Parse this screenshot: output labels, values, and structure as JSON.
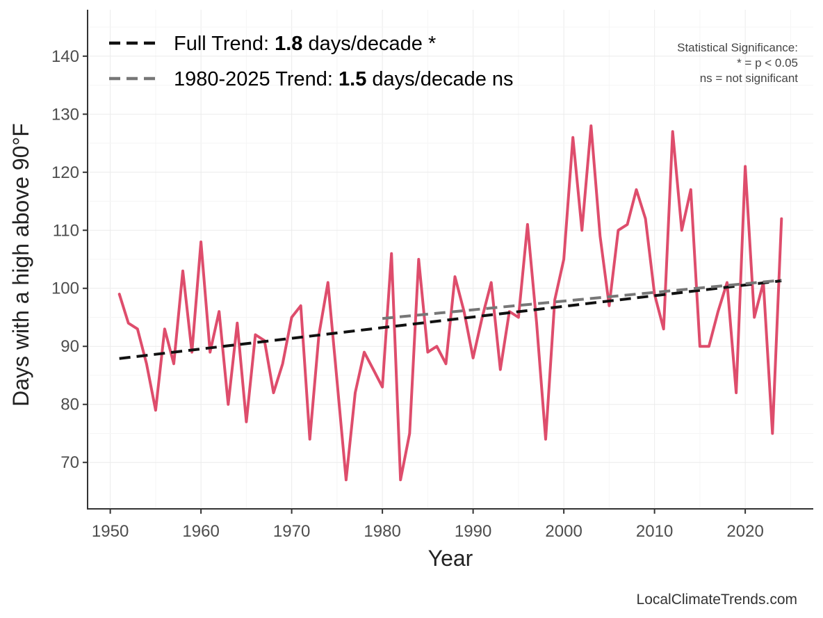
{
  "chart_data": {
    "type": "line",
    "xlabel": "Year",
    "ylabel": "Days with a high above 90°F",
    "xlim": [
      1947.5,
      2027.5
    ],
    "ylim": [
      62,
      148
    ],
    "x_ticks": [
      1950,
      1960,
      1970,
      1980,
      1990,
      2000,
      2010,
      2020
    ],
    "y_ticks": [
      70,
      80,
      90,
      100,
      110,
      120,
      130,
      140
    ],
    "grid": true,
    "legend_position": "top-left",
    "series": [
      {
        "color": "#de4d6c",
        "x": [
          1951,
          1952,
          1953,
          1954,
          1955,
          1956,
          1957,
          1958,
          1959,
          1960,
          1961,
          1962,
          1963,
          1964,
          1965,
          1966,
          1967,
          1968,
          1969,
          1970,
          1971,
          1972,
          1973,
          1974,
          1975,
          1976,
          1977,
          1978,
          1979,
          1980,
          1981,
          1982,
          1983,
          1984,
          1985,
          1986,
          1987,
          1988,
          1989,
          1990,
          1991,
          1992,
          1993,
          1994,
          1995,
          1996,
          1997,
          1998,
          1999,
          2000,
          2001,
          2002,
          2003,
          2004,
          2005,
          2006,
          2007,
          2008,
          2009,
          2010,
          2011,
          2012,
          2013,
          2014,
          2015,
          2016,
          2017,
          2018,
          2019,
          2020,
          2021,
          2022,
          2023,
          2024
        ],
        "y": [
          99,
          94,
          93,
          87,
          79,
          93,
          87,
          103,
          89,
          108,
          89,
          96,
          80,
          94,
          77,
          92,
          91,
          82,
          87,
          95,
          97,
          74,
          92,
          101,
          84,
          67,
          82,
          89,
          86,
          83,
          106,
          67,
          75,
          105,
          89,
          90,
          87,
          102,
          96,
          88,
          95,
          101,
          86,
          96,
          95,
          111,
          94,
          74,
          98,
          105,
          126,
          110,
          128,
          109,
          97,
          110,
          111,
          117,
          112,
          99,
          93,
          127,
          110,
          117,
          90,
          90,
          96,
          101,
          82,
          121,
          95,
          101,
          75,
          112
        ]
      }
    ],
    "trend_lines": [
      {
        "name": "Full Trend",
        "prefix": "Full Trend: ",
        "value": "1.8",
        "suffix": " days/decade *",
        "color": "#111111",
        "x": [
          1951,
          2024
        ],
        "y": [
          87.9,
          101.3
        ]
      },
      {
        "name": "1980-2025 Trend",
        "prefix": "1980-2025 Trend: ",
        "value": "1.5",
        "suffix": " days/decade ns",
        "color": "#777777",
        "x": [
          1980,
          2024
        ],
        "y": [
          94.8,
          101.4
        ]
      }
    ],
    "annotations": [
      "Statistical Significance:",
      "* = p < 0.05",
      "ns = not significant"
    ],
    "credit": "LocalClimateTrends.com"
  }
}
